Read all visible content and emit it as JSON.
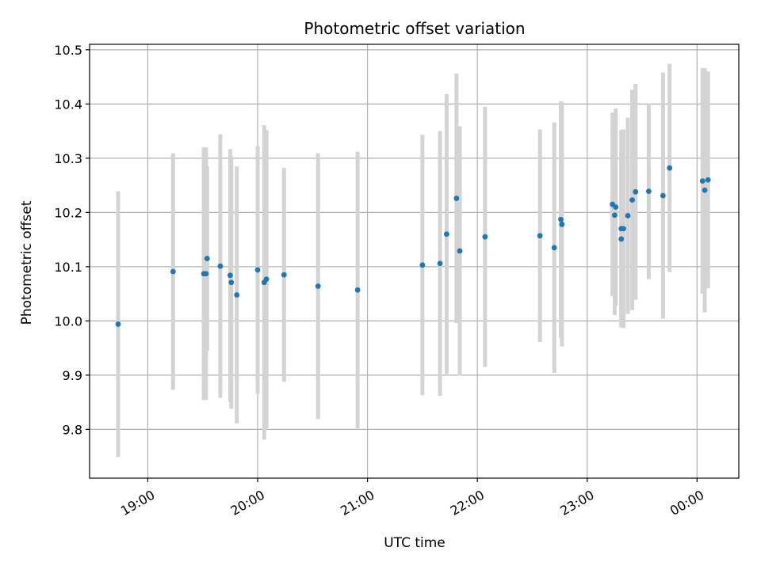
{
  "chart_data": {
    "type": "scatter",
    "title": "Photometric offset variation",
    "xlabel": "UTC time",
    "ylabel": "Photometric offset",
    "x_tick_labels": [
      "19:00",
      "20:00",
      "21:00",
      "22:00",
      "23:00",
      "00:00"
    ],
    "x_tick_values_hours": [
      19,
      20,
      21,
      22,
      23,
      24
    ],
    "y_tick_labels": [
      "9.8",
      "9.9",
      "10.0",
      "10.1",
      "10.2",
      "10.3",
      "10.4",
      "10.5"
    ],
    "y_tick_values": [
      9.8,
      9.9,
      10.0,
      10.1,
      10.2,
      10.3,
      10.4,
      10.5
    ],
    "xlim_hours": [
      18.47,
      24.38
    ],
    "ylim": [
      9.71,
      10.51
    ],
    "grid": true,
    "colors": {
      "point": "#1f77b4",
      "errorbar": "#d3d3d3",
      "grid": "#b0b0b0"
    },
    "series": [
      {
        "x_hours": [
          18.73,
          19.23,
          19.51,
          19.53,
          19.54,
          19.66,
          19.75,
          19.76,
          19.81,
          20.0,
          20.06,
          20.08,
          20.24,
          20.55,
          20.91,
          21.5,
          21.66,
          21.72,
          21.81,
          21.84,
          22.07,
          22.57,
          22.7,
          22.76,
          22.77,
          23.23,
          23.25,
          23.26,
          23.31,
          23.31,
          23.33,
          23.37,
          23.41,
          23.44,
          23.56,
          23.69,
          23.75,
          24.05,
          24.07,
          24.1
        ],
        "y": [
          9.994,
          10.091,
          10.087,
          10.087,
          10.115,
          10.101,
          10.084,
          10.071,
          10.048,
          10.094,
          10.071,
          10.077,
          10.085,
          10.064,
          10.057,
          10.103,
          10.106,
          10.16,
          10.226,
          10.129,
          10.155,
          10.157,
          10.135,
          10.187,
          10.178,
          10.215,
          10.195,
          10.21,
          10.17,
          10.151,
          10.17,
          10.194,
          10.223,
          10.238,
          10.239,
          10.231,
          10.282,
          10.258,
          10.241,
          10.26
        ],
        "y_err": [
          0.245,
          0.218,
          0.233,
          0.233,
          0.17,
          0.243,
          0.233,
          0.233,
          0.237,
          0.228,
          0.29,
          0.275,
          0.197,
          0.245,
          0.255,
          0.24,
          0.244,
          0.258,
          0.23,
          0.23,
          0.24,
          0.196,
          0.231,
          0.218,
          0.225,
          0.169,
          0.184,
          0.182,
          0.182,
          0.16,
          0.183,
          0.181,
          0.203,
          0.199,
          0.162,
          0.227,
          0.192,
          0.208,
          0.225,
          0.2
        ]
      }
    ]
  }
}
